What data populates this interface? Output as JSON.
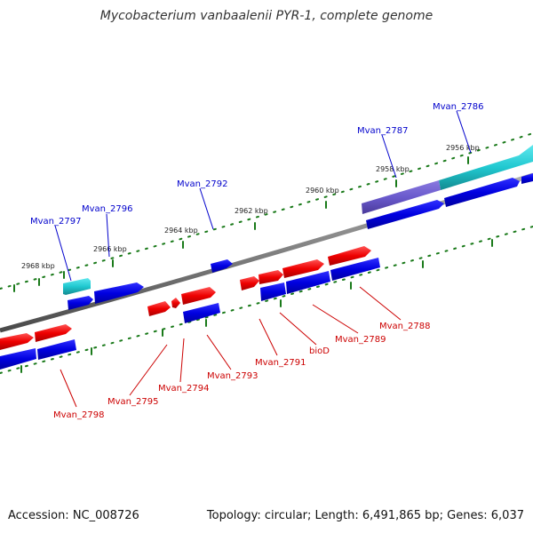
{
  "title": "Mycobacterium vanbaalenii PYR-1, complete genome",
  "footer": {
    "accession": "Accession: NC_008726",
    "summary": "Topology: circular; Length: 6,491,865 bp; Genes: 6,037"
  },
  "colors": {
    "backbone": "#808080",
    "forward_gene": "#e00000",
    "reverse_gene": "#0000dd",
    "rna_gene": "#20c8d0",
    "highlight_gene": "#6a5acd",
    "tick": "#1a7a1a",
    "label_top": "#0000cc",
    "label_bottom": "#cc0000"
  },
  "scale_labels": [
    "2956 kbp",
    "2958 kbp",
    "2960 kbp",
    "2962 kbp",
    "2964 kbp",
    "2966 kbp",
    "2968 kbp"
  ],
  "gene_labels_top": [
    "Mvan_2786",
    "Mvan_2787",
    "Mvan_2792",
    "Mvan_2796",
    "Mvan_2797"
  ],
  "gene_labels_bottom": [
    "Mvan_2788",
    "Mvan_2789",
    "bioD",
    "Mvan_2791",
    "Mvan_2793",
    "Mvan_2794",
    "Mvan_2795",
    "Mvan_2798"
  ]
}
